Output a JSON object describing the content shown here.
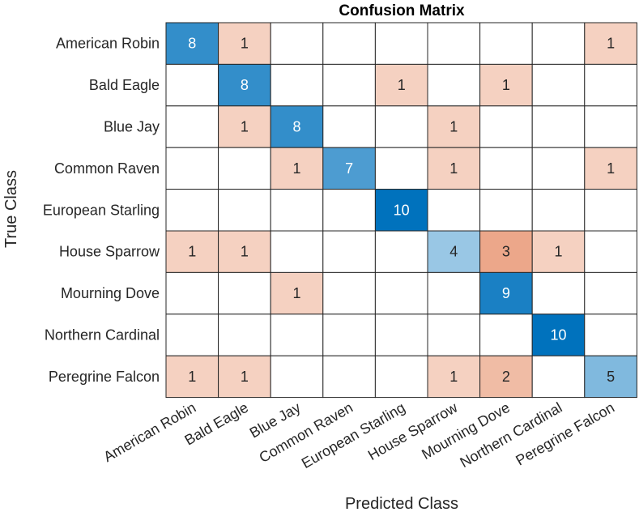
{
  "chart_data": {
    "type": "heatmap",
    "title": "Confusion Matrix",
    "xlabel": "Predicted Class",
    "ylabel": "True Class",
    "classes": [
      "American Robin",
      "Bald Eagle",
      "Blue Jay",
      "Common Raven",
      "European Starling",
      "House Sparrow",
      "Mourning Dove",
      "Northern Cardinal",
      "Peregrine Falcon"
    ],
    "matrix": [
      [
        8,
        1,
        0,
        0,
        0,
        0,
        0,
        0,
        1
      ],
      [
        0,
        8,
        0,
        0,
        1,
        0,
        1,
        0,
        0
      ],
      [
        0,
        1,
        8,
        0,
        0,
        1,
        0,
        0,
        0
      ],
      [
        0,
        0,
        1,
        7,
        0,
        1,
        0,
        0,
        1
      ],
      [
        0,
        0,
        0,
        0,
        10,
        0,
        0,
        0,
        0
      ],
      [
        1,
        1,
        0,
        0,
        0,
        4,
        3,
        1,
        0
      ],
      [
        0,
        0,
        1,
        0,
        0,
        0,
        9,
        0,
        0
      ],
      [
        0,
        0,
        0,
        0,
        0,
        0,
        0,
        10,
        0
      ],
      [
        1,
        1,
        0,
        0,
        0,
        1,
        2,
        0,
        5
      ]
    ],
    "zero_cells_blank": true,
    "colors": {
      "diagonal_max": "#0072BD",
      "offdiagonal_max": "#D95319",
      "background": "#FFFFFF",
      "grid": "#262626"
    }
  }
}
